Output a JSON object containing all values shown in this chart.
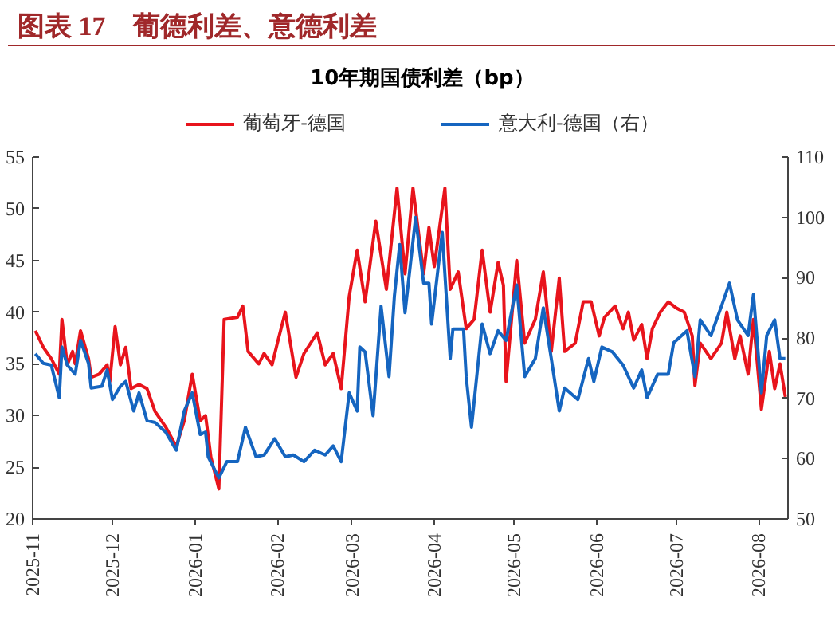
{
  "chart_data": {
    "type": "line",
    "title": "10年期国债利差（bp）",
    "annotations": [
      "图表 17　葡德利差、意德利差"
    ],
    "xlim": [
      "2025-11-01",
      "2026-08-12"
    ],
    "xticks": [
      {
        "value": "2025-11-01",
        "label": "2025-11"
      },
      {
        "value": "2025-12-01",
        "label": "2025-12"
      },
      {
        "value": "2026-01-01",
        "label": "2026-01"
      },
      {
        "value": "2026-02-01",
        "label": "2026-02"
      },
      {
        "value": "2026-03-01",
        "label": "2026-03"
      },
      {
        "value": "2026-04-01",
        "label": "2026-04"
      },
      {
        "value": "2026-05-01",
        "label": "2026-05"
      },
      {
        "value": "2026-06-01",
        "label": "2026-06"
      },
      {
        "value": "2026-07-01",
        "label": "2026-07"
      },
      {
        "value": "2026-08-01",
        "label": "2026-08"
      }
    ],
    "ylim": [
      20,
      55
    ],
    "yticks": [
      20,
      25,
      30,
      35,
      40,
      45,
      50,
      55
    ],
    "y2lim": [
      50,
      110
    ],
    "y2ticks": [
      50,
      60,
      70,
      80,
      90,
      100,
      110
    ],
    "legend": "top",
    "grid": false,
    "marker": "none",
    "line_style": "solid",
    "series": [
      {
        "name": "葡萄牙-德国",
        "color": "#e8141c",
        "x": [
          "2025-11-02",
          "2025-11-05",
          "2025-11-08",
          "2025-11-11",
          "2025-11-12",
          "2025-11-14",
          "2025-11-16",
          "2025-11-17",
          "2025-11-19",
          "2025-11-22",
          "2025-11-23",
          "2025-11-26",
          "2025-11-29",
          "2025-11-30",
          "2025-12-02",
          "2025-12-04",
          "2025-12-06",
          "2025-12-08",
          "2025-12-11",
          "2025-12-14",
          "2025-12-17",
          "2025-12-21",
          "2025-12-25",
          "2025-12-28",
          "2025-12-31",
          "2026-01-03",
          "2026-01-05",
          "2026-01-07",
          "2026-01-10",
          "2026-01-12",
          "2026-01-17",
          "2026-01-19",
          "2026-01-21",
          "2026-01-25",
          "2026-01-27",
          "2026-01-30",
          "2026-02-01",
          "2026-02-04",
          "2026-02-08",
          "2026-02-11",
          "2026-02-16",
          "2026-02-19",
          "2026-02-22",
          "2026-02-25",
          "2026-02-28",
          "2026-03-03",
          "2026-03-06",
          "2026-03-10",
          "2026-03-14",
          "2026-03-18",
          "2026-03-21",
          "2026-03-24",
          "2026-03-28",
          "2026-03-30",
          "2026-04-01",
          "2026-04-05",
          "2026-04-07",
          "2026-04-10",
          "2026-04-13",
          "2026-04-16",
          "2026-04-19",
          "2026-04-22",
          "2026-04-25",
          "2026-04-27",
          "2026-04-28",
          "2026-05-02",
          "2026-05-05",
          "2026-05-09",
          "2026-05-12",
          "2026-05-15",
          "2026-05-18",
          "2026-05-20",
          "2026-05-24",
          "2026-05-27",
          "2026-05-30",
          "2026-06-02",
          "2026-06-04",
          "2026-06-08",
          "2026-06-11",
          "2026-06-13",
          "2026-06-15",
          "2026-06-18",
          "2026-06-20",
          "2026-06-22",
          "2026-06-25",
          "2026-06-28",
          "2026-07-01",
          "2026-07-04",
          "2026-07-07",
          "2026-07-08",
          "2026-07-10",
          "2026-07-14",
          "2026-07-18",
          "2026-07-20",
          "2026-07-23",
          "2026-07-25",
          "2026-07-28",
          "2026-07-30",
          "2026-08-02",
          "2026-08-05",
          "2026-08-07",
          "2026-08-09",
          "2026-08-11"
        ],
        "values": [
          38.2,
          36.6,
          35.5,
          34,
          39.3,
          34.9,
          36.2,
          35,
          38.2,
          35.5,
          33.7,
          34,
          34.9,
          33.3,
          38.6,
          34.9,
          36.6,
          32.6,
          33,
          32.6,
          30.4,
          28.9,
          27,
          29.5,
          34,
          29.5,
          30,
          26,
          22.9,
          39.3,
          39.5,
          40.6,
          36.2,
          35,
          36,
          34.9,
          37,
          40,
          33.7,
          36,
          38,
          34.9,
          36,
          32.6,
          41.5,
          46,
          41,
          48.8,
          42.2,
          52,
          43.7,
          52,
          43.7,
          48.2,
          44.4,
          52,
          42.2,
          43.9,
          38.4,
          39.3,
          46,
          40,
          44.8,
          42.6,
          33.3,
          45,
          37,
          39.3,
          43.9,
          36.2,
          43.3,
          36.2,
          37,
          41,
          41,
          37.7,
          39.5,
          40.6,
          38.4,
          40,
          37.3,
          38.8,
          35.5,
          38.4,
          40,
          41,
          40.4,
          40,
          37.7,
          32.9,
          37,
          35.5,
          37,
          40,
          35.5,
          37.7,
          34,
          39.3,
          30.6,
          36.2,
          32.6,
          35,
          31.8
        ]
      },
      {
        "name": "意大利-德国（右）",
        "color": "#1565c0",
        "axis": "y2",
        "x": [
          "2025-11-02",
          "2025-11-05",
          "2025-11-08",
          "2025-11-11",
          "2025-11-12",
          "2025-11-14",
          "2025-11-17",
          "2025-11-19",
          "2025-11-22",
          "2025-11-23",
          "2025-11-27",
          "2025-11-29",
          "2025-12-01",
          "2025-12-04",
          "2025-12-06",
          "2025-12-09",
          "2025-12-11",
          "2025-12-14",
          "2025-12-17",
          "2025-12-21",
          "2025-12-25",
          "2025-12-28",
          "2025-12-31",
          "2026-01-03",
          "2026-01-05",
          "2026-01-06",
          "2026-01-10",
          "2026-01-13",
          "2026-01-17",
          "2026-01-20",
          "2026-01-24",
          "2026-01-27",
          "2026-01-31",
          "2026-02-04",
          "2026-02-07",
          "2026-02-11",
          "2026-02-15",
          "2026-02-19",
          "2026-02-22",
          "2026-02-25",
          "2026-02-28",
          "2026-03-03",
          "2026-03-04",
          "2026-03-06",
          "2026-03-09",
          "2026-03-12",
          "2026-03-15",
          "2026-03-17",
          "2026-03-19",
          "2026-03-21",
          "2026-03-25",
          "2026-03-28",
          "2026-03-30",
          "2026-03-31",
          "2026-04-04",
          "2026-04-07",
          "2026-04-08",
          "2026-04-12",
          "2026-04-13",
          "2026-04-15",
          "2026-04-19",
          "2026-04-22",
          "2026-04-25",
          "2026-04-28",
          "2026-05-02",
          "2026-05-05",
          "2026-05-09",
          "2026-05-12",
          "2026-05-15",
          "2026-05-18",
          "2026-05-20",
          "2026-05-25",
          "2026-05-29",
          "2026-05-31",
          "2026-06-03",
          "2026-06-07",
          "2026-06-11",
          "2026-06-15",
          "2026-06-18",
          "2026-06-20",
          "2026-06-24",
          "2026-06-28",
          "2026-06-30",
          "2026-07-05",
          "2026-07-08",
          "2026-07-10",
          "2026-07-14",
          "2026-07-18",
          "2026-07-21",
          "2026-07-24",
          "2026-07-28",
          "2026-07-30",
          "2026-08-02",
          "2026-08-04",
          "2026-08-07",
          "2026-08-09",
          "2026-08-11"
        ],
        "values": [
          77.4,
          75.8,
          75.5,
          70.1,
          78.5,
          75.5,
          74,
          79.6,
          75.8,
          71.7,
          72,
          74.7,
          69.8,
          72,
          72.8,
          67.9,
          70.9,
          66.3,
          66,
          64.4,
          61.4,
          67.9,
          70.9,
          64,
          64.4,
          60.3,
          56.8,
          59.5,
          59.5,
          65.2,
          60.3,
          60.6,
          63.3,
          60.3,
          60.6,
          59.5,
          61.4,
          60.6,
          62.1,
          59.5,
          70.9,
          67.9,
          78.5,
          77.7,
          67.1,
          85.3,
          73.6,
          86.9,
          95.5,
          84.2,
          100,
          89.1,
          89.1,
          82.3,
          97.5,
          76.6,
          81.5,
          81.5,
          73.6,
          65.2,
          82.3,
          77.4,
          81.2,
          79.6,
          88.8,
          73.6,
          76.6,
          85,
          76.6,
          67.9,
          71.7,
          69.8,
          76.6,
          72.8,
          78.5,
          77.7,
          75.5,
          71.7,
          74.7,
          70.1,
          74,
          74,
          79.2,
          81.2,
          73.6,
          83,
          80.4,
          85.3,
          89.1,
          83,
          80.4,
          87.2,
          70.9,
          80.4,
          83,
          76.6,
          76.6
        ]
      }
    ]
  }
}
